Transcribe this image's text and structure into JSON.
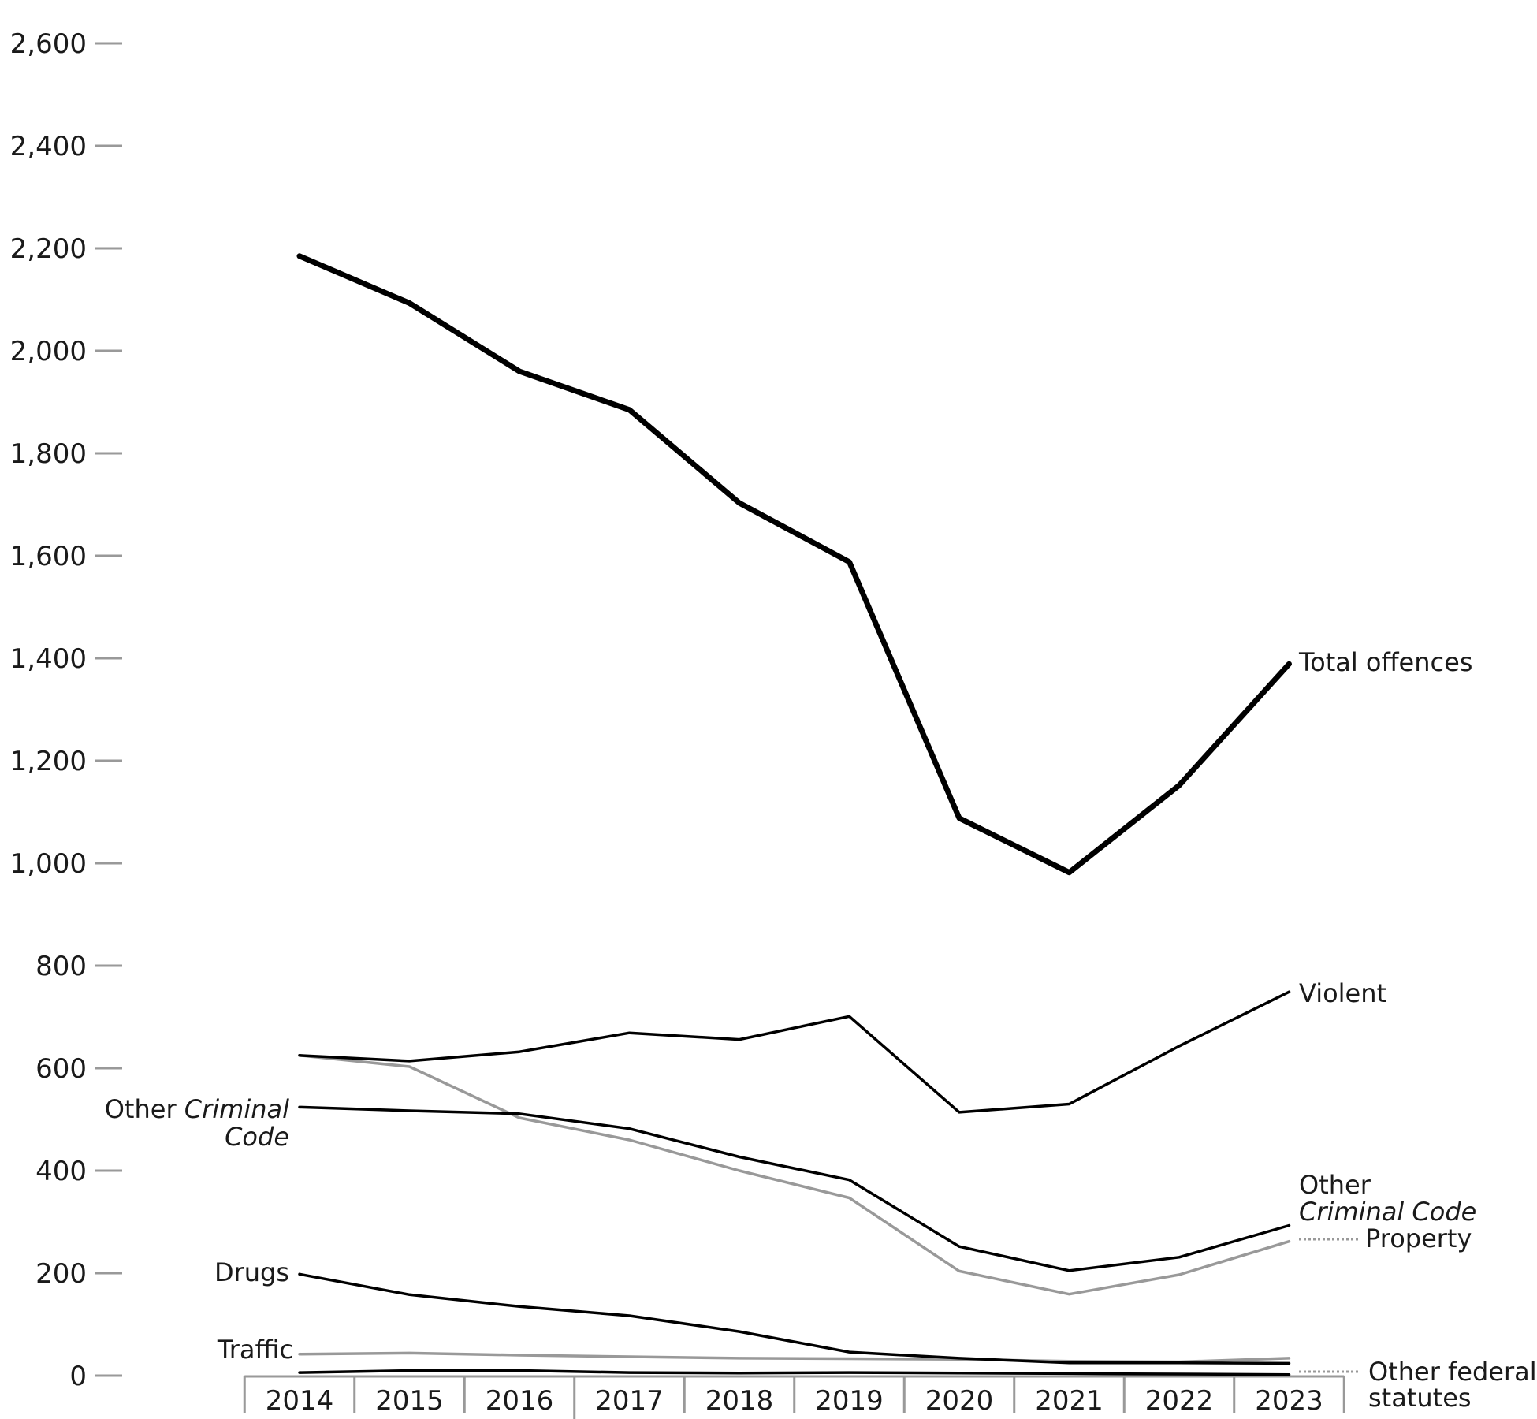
{
  "chart_data": {
    "type": "line",
    "title": "",
    "xlabel": "",
    "ylabel": "",
    "categories": [
      "2014",
      "2015",
      "2016",
      "2017",
      "2018",
      "2019",
      "2020",
      "2021",
      "2022",
      "2023"
    ],
    "ylim": [
      0,
      2600
    ],
    "yticks": [
      0,
      200,
      400,
      600,
      800,
      1000,
      1200,
      1400,
      1600,
      1800,
      2000,
      2200,
      2400,
      2600
    ],
    "ytick_labels": [
      "0",
      "200",
      "400",
      "600",
      "800",
      "1,000",
      "1,200",
      "1,400",
      "1,600",
      "1,800",
      "2,000",
      "2,200",
      "2,400",
      "2,600"
    ],
    "grid": false,
    "series": [
      {
        "key": "total",
        "name": "Total offences",
        "color": "#000000",
        "style": "bold",
        "values": [
          2185,
          2093,
          1960,
          1885,
          1703,
          1588,
          1088,
          982,
          1152,
          1389
        ]
      },
      {
        "key": "violent",
        "name": "Violent",
        "color": "#000000",
        "style": "normal",
        "values": [
          625,
          614,
          632,
          669,
          656,
          701,
          514,
          530,
          643,
          749
        ]
      },
      {
        "key": "other_cc",
        "name": "Other Criminal Code",
        "color": "#000000",
        "style": "normal",
        "values": [
          524,
          517,
          511,
          482,
          427,
          382,
          252,
          205,
          231,
          293
        ]
      },
      {
        "key": "property",
        "name": "Property",
        "color": "#999999",
        "style": "normal",
        "values": [
          625,
          603,
          503,
          460,
          400,
          347,
          204,
          159,
          197,
          262
        ]
      },
      {
        "key": "drugs",
        "name": "Drugs",
        "color": "#000000",
        "style": "normal",
        "values": [
          198,
          158,
          135,
          117,
          86,
          46,
          34,
          25,
          25,
          24
        ]
      },
      {
        "key": "traffic",
        "name": "Traffic",
        "color": "#999999",
        "style": "normal",
        "values": [
          42,
          44,
          40,
          37,
          34,
          33,
          32,
          28,
          27,
          34
        ]
      },
      {
        "key": "other_fed",
        "name": "Other federal statutes",
        "color": "#000000",
        "style": "normal",
        "values": [
          6,
          10,
          10,
          6,
          5,
          6,
          5,
          4,
          3,
          2
        ]
      }
    ],
    "labels": {
      "total": "Total offences",
      "violent": "Violent",
      "other_cc_left_1": "Other ",
      "other_cc_left_italic": "Criminal",
      "other_cc_left_2": "Code",
      "other_cc_right_1": "Other",
      "other_cc_right_2": "Criminal Code",
      "property": "Property",
      "drugs": "Drugs",
      "traffic": "Traffic",
      "other_fed_1": "Other federal",
      "other_fed_2": "statutes"
    }
  }
}
